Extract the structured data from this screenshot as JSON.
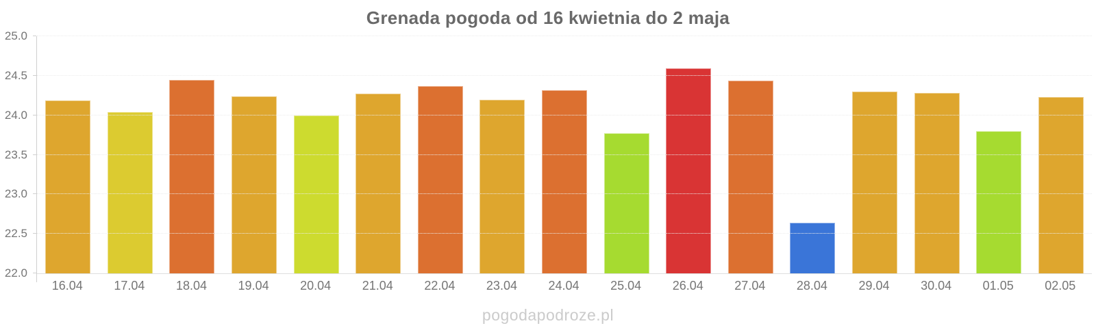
{
  "title": "Grenada pogoda od 16 kwietnia do 2 maja",
  "watermark": "pogodapodroze.pl",
  "chart_data": {
    "type": "bar",
    "title": "Grenada pogoda od 16 kwietnia do 2 maja",
    "categories": [
      "16.04",
      "17.04",
      "18.04",
      "19.04",
      "20.04",
      "21.04",
      "22.04",
      "23.04",
      "24.04",
      "25.04",
      "26.04",
      "27.04",
      "28.04",
      "29.04",
      "30.04",
      "01.05",
      "02.05"
    ],
    "values": [
      24.19,
      24.04,
      24.45,
      24.24,
      24.0,
      24.27,
      24.37,
      24.2,
      24.32,
      23.77,
      24.59,
      24.44,
      22.64,
      24.3,
      24.28,
      23.8,
      24.23
    ],
    "colors": [
      "#dea62e",
      "#dccb30",
      "#dc7030",
      "#dea62e",
      "#cddb2f",
      "#dea62e",
      "#dc7030",
      "#dea62e",
      "#dc7030",
      "#a6db30",
      "#d93434",
      "#dc7030",
      "#3a75d8",
      "#dea62e",
      "#dea62e",
      "#a6db30",
      "#dea62e"
    ],
    "xlabel": "",
    "ylabel": "",
    "ylim": [
      22.0,
      25.0
    ],
    "ytick_step": 0.5,
    "yticks": [
      25.0,
      24.5,
      24.0,
      23.5,
      23.0,
      22.5,
      22.0
    ],
    "grid": "horizontal-dotted",
    "legend": "none",
    "units": "°C"
  },
  "style_colors": {
    "title": "#696969",
    "axis_line": "#cfcfcf",
    "baseline": "#dedede",
    "grid": "#ececec",
    "tick_label": "#757575",
    "watermark": "#cbcbcb",
    "background": "#ffffff"
  }
}
